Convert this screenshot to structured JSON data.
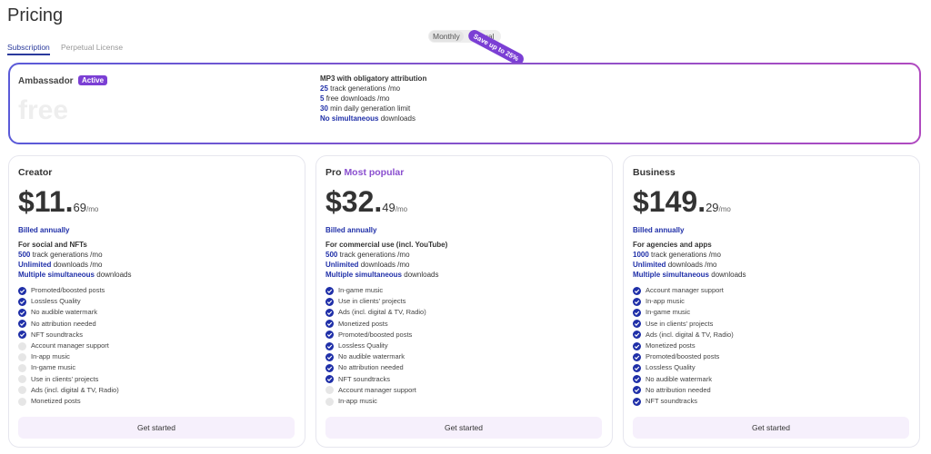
{
  "header": {
    "title": "Pricing"
  },
  "tabs": [
    "Subscription",
    "Perpetual License"
  ],
  "billing_toggle": {
    "options": [
      "Monthly",
      "Annual"
    ],
    "badge": "Save up to 25%"
  },
  "ambassador": {
    "name": "Ambassador",
    "status": "Active",
    "price": "free",
    "heading": "MP3 with obligatory attribution",
    "highlights": [
      {
        "strong": "25",
        "text": "track generations /mo"
      },
      {
        "strong": "5",
        "text": "free downloads /mo"
      },
      {
        "strong": "30",
        "text": "min daily generation limit"
      },
      {
        "strong": "No simultaneous",
        "text": "downloads"
      }
    ]
  },
  "plans": [
    {
      "name": "Creator",
      "price_main": "$11.",
      "price_cents": "69",
      "period": "/mo",
      "billing": "Billed annually",
      "audience": "For social and NFTs",
      "highlights": [
        {
          "strong": "500",
          "text": "track generations /mo"
        },
        {
          "strong": "Unlimited",
          "text": "downloads /mo"
        },
        {
          "strong": "Multiple simultaneous",
          "text": "downloads"
        }
      ],
      "features": [
        {
          "text": "Promoted/boosted posts",
          "included": true
        },
        {
          "text": "Lossless Quality",
          "included": true
        },
        {
          "text": "No audible watermark",
          "included": true
        },
        {
          "text": "No attribution needed",
          "included": true
        },
        {
          "text": "NFT soundtracks",
          "included": true
        },
        {
          "text": "Account manager support",
          "included": false
        },
        {
          "text": "In-app music",
          "included": false
        },
        {
          "text": "In-game music",
          "included": false
        },
        {
          "text": "Use in clients' projects",
          "included": false
        },
        {
          "text": "Ads (incl. digital & TV, Radio)",
          "included": false
        },
        {
          "text": "Monetized posts",
          "included": false
        }
      ],
      "button": "Get started"
    },
    {
      "name": "Pro",
      "tag": "Most popular",
      "price_main": "$32.",
      "price_cents": "49",
      "period": "/mo",
      "billing": "Billed annually",
      "audience": "For commercial use (incl. YouTube)",
      "highlights": [
        {
          "strong": "500",
          "text": "track generations /mo"
        },
        {
          "strong": "Unlimited",
          "text": "downloads /mo"
        },
        {
          "strong": "Multiple simultaneous",
          "text": "downloads"
        }
      ],
      "features": [
        {
          "text": "In-game music",
          "included": true
        },
        {
          "text": "Use in clients' projects",
          "included": true
        },
        {
          "text": "Ads (incl. digital & TV, Radio)",
          "included": true
        },
        {
          "text": "Monetized posts",
          "included": true
        },
        {
          "text": "Promoted/boosted posts",
          "included": true
        },
        {
          "text": "Lossless Quality",
          "included": true
        },
        {
          "text": "No audible watermark",
          "included": true
        },
        {
          "text": "No attribution needed",
          "included": true
        },
        {
          "text": "NFT soundtracks",
          "included": true
        },
        {
          "text": "Account manager support",
          "included": false
        },
        {
          "text": "In-app music",
          "included": false
        }
      ],
      "button": "Get started"
    },
    {
      "name": "Business",
      "price_main": "$149.",
      "price_cents": "29",
      "period": "/mo",
      "billing": "Billed annually",
      "audience": "For agencies and apps",
      "highlights": [
        {
          "strong": "1000",
          "text": "track generations /mo"
        },
        {
          "strong": "Unlimited",
          "text": "downloads /mo"
        },
        {
          "strong": "Multiple simultaneous",
          "text": "downloads"
        }
      ],
      "features": [
        {
          "text": "Account manager support",
          "included": true
        },
        {
          "text": "In-app music",
          "included": true
        },
        {
          "text": "In-game music",
          "included": true
        },
        {
          "text": "Use in clients' projects",
          "included": true
        },
        {
          "text": "Ads (incl. digital & TV, Radio)",
          "included": true
        },
        {
          "text": "Monetized posts",
          "included": true
        },
        {
          "text": "Promoted/boosted posts",
          "included": true
        },
        {
          "text": "Lossless Quality",
          "included": true
        },
        {
          "text": "No audible watermark",
          "included": true
        },
        {
          "text": "No attribution needed",
          "included": true
        },
        {
          "text": "NFT soundtracks",
          "included": true
        }
      ],
      "button": "Get started"
    }
  ]
}
